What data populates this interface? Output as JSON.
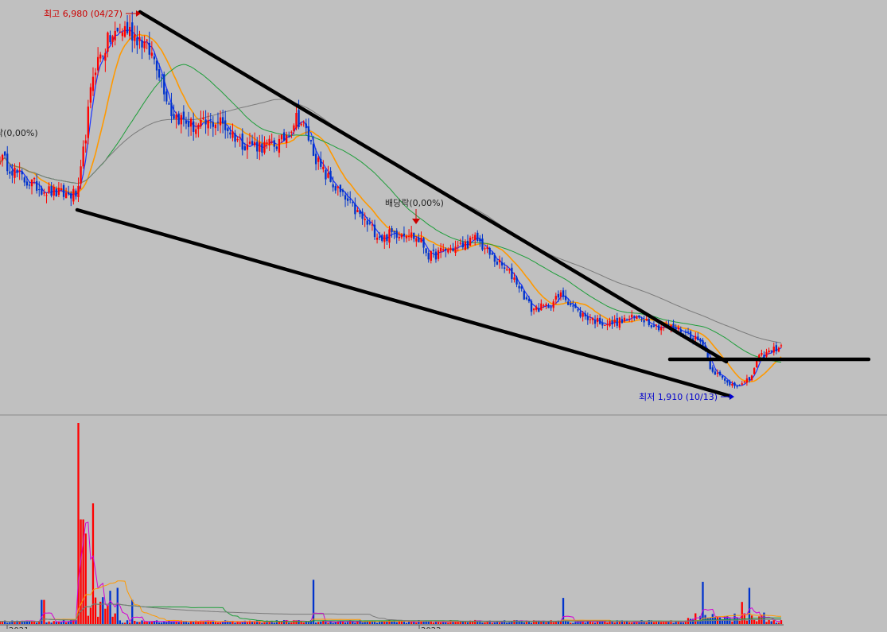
{
  "colors": {
    "background": "#c0c0c0",
    "up_candle": "#ff0000",
    "down_candle": "#0033cc",
    "ma5": "#1a33ff",
    "ma20": "#ff9900",
    "ma60": "#1e9e3a",
    "ma120": "#7a7a7a",
    "trendline": "#000000",
    "volume_up": "#ff0000",
    "volume_down": "#0033cc",
    "separator": "#8a8a8a",
    "high_label": "#cc0000",
    "low_label": "#0000cc"
  },
  "annotations": {
    "high_label": "최고 6,980 (04/27)",
    "low_label": "최저 1,910 (10/13)",
    "dividend_label": "배당락(0,00%)",
    "partial_left_label": "낙(0,00%)"
  },
  "axis": {
    "x_label_left": "2021",
    "x_label_right": "2022"
  },
  "chart_data": {
    "type": "candlestick",
    "price_ylim": [
      1700,
      7000
    ],
    "high": {
      "value": 6980,
      "date": "04/27"
    },
    "low": {
      "value": 1910,
      "date": "10/13"
    },
    "close_path": [
      [
        0,
        5000
      ],
      [
        3,
        4700
      ],
      [
        6,
        4550
      ],
      [
        8,
        4500
      ],
      [
        10,
        4500
      ],
      [
        12,
        6200
      ],
      [
        14,
        6600
      ],
      [
        16,
        6750
      ],
      [
        18,
        6600
      ],
      [
        20,
        6300
      ],
      [
        22,
        5600
      ],
      [
        25,
        5400
      ],
      [
        28,
        5500
      ],
      [
        31,
        5200
      ],
      [
        34,
        5150
      ],
      [
        36,
        5200
      ],
      [
        38,
        5550
      ],
      [
        39,
        5400
      ],
      [
        41,
        4850
      ],
      [
        44,
        4450
      ],
      [
        47,
        4100
      ],
      [
        49,
        3900
      ],
      [
        50,
        3970
      ],
      [
        52,
        4000
      ],
      [
        54,
        3850
      ],
      [
        55,
        3650
      ],
      [
        57,
        3750
      ],
      [
        59,
        3800
      ],
      [
        61,
        3900
      ],
      [
        63,
        3650
      ],
      [
        66,
        3350
      ],
      [
        68,
        2950
      ],
      [
        70,
        2980
      ],
      [
        72,
        3150
      ],
      [
        74,
        2900
      ],
      [
        76,
        2800
      ],
      [
        78,
        2750
      ],
      [
        80,
        2800
      ],
      [
        82,
        2850
      ],
      [
        84,
        2720
      ],
      [
        86,
        2700
      ],
      [
        88,
        2620
      ],
      [
        90,
        2480
      ],
      [
        91,
        2150
      ],
      [
        93,
        1950
      ],
      [
        95,
        1930
      ],
      [
        96,
        2000
      ],
      [
        97,
        2280
      ],
      [
        100,
        2460
      ]
    ],
    "volume_spikes": [
      {
        "x": 10,
        "volume": 100
      },
      {
        "x": 10.5,
        "volume": 52
      },
      {
        "x": 11,
        "volume": 45
      },
      {
        "x": 12,
        "volume": 60
      },
      {
        "x": 15,
        "volume": 18
      },
      {
        "x": 17,
        "volume": 12
      },
      {
        "x": 40,
        "volume": 22
      },
      {
        "x": 90,
        "volume": 21
      },
      {
        "x": 96,
        "volume": 18
      },
      {
        "x": 95,
        "volume": 11
      },
      {
        "x": 72,
        "volume": 13
      },
      {
        "x": 5.5,
        "volume": 12
      }
    ],
    "moving_averages": [
      "MA5",
      "MA20",
      "MA60",
      "MA120"
    ]
  }
}
